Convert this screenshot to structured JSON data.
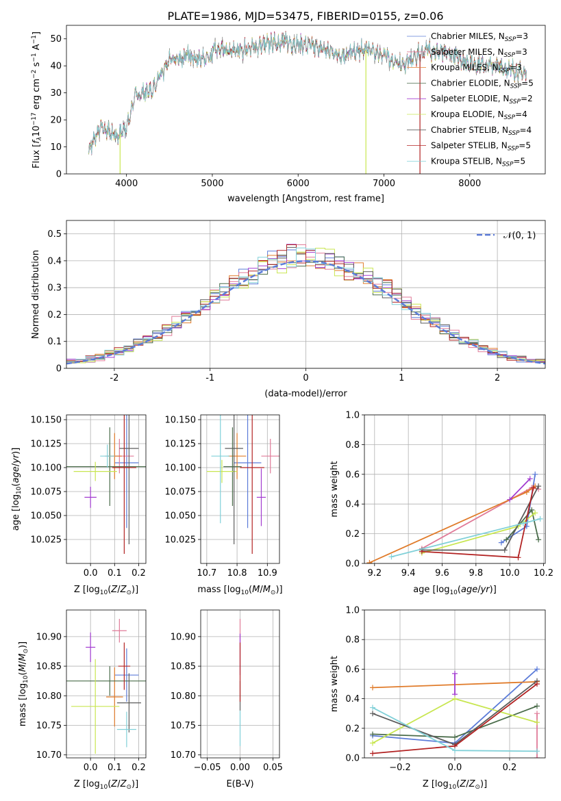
{
  "title": "PLATE=1986, MJD=53475, FIBERID=0155, z=0.06",
  "colors": [
    "#5b7bd8",
    "#e07a98",
    "#e07b2a",
    "#4a6c4a",
    "#a23bd0",
    "#c8e650",
    "#5b5b5b",
    "#b22222",
    "#80d0d8"
  ],
  "legend_spectrum": [
    {
      "label": "Chabrier MILES, N",
      "sub": "SSP",
      "tail": "=3"
    },
    {
      "label": "Salpeter MILES, N",
      "sub": "SSP",
      "tail": "=3"
    },
    {
      "label": "Kroupa MILES, N",
      "sub": "SSP",
      "tail": "=3"
    },
    {
      "label": "Chabrier ELODIE, N",
      "sub": "SSP",
      "tail": "=5"
    },
    {
      "label": "Salpeter ELODIE, N",
      "sub": "SSP",
      "tail": "=2"
    },
    {
      "label": "Kroupa ELODIE, N",
      "sub": "SSP",
      "tail": "=4"
    },
    {
      "label": "Chabrier STELIB, N",
      "sub": "SSP",
      "tail": "=4"
    },
    {
      "label": "Salpeter STELIB, N",
      "sub": "SSP",
      "tail": "=5"
    },
    {
      "label": "Kroupa STELIB, N",
      "sub": "SSP",
      "tail": "=5"
    }
  ],
  "legend_hist": "𝒩(0, 1)",
  "chart_data": [
    {
      "type": "line",
      "name": "spectrum",
      "xlabel": "wavelength [Angstrom, rest frame]",
      "ylabel_main": "Flux [",
      "ylabel_tail": "10",
      "ylabel_exp": "−17",
      "ylabel_unit": " erg cm",
      "ylabel_exp2": "−2",
      "ylabel_s": " s",
      "ylabel_exp3": "−1",
      "ylabel_A": " A",
      "ylabel_exp4": "−1",
      "ylabel_end": "]",
      "xlim": [
        3300,
        8880
      ],
      "ylim": [
        0,
        55
      ],
      "xticks": [
        4000,
        5000,
        6000,
        7000,
        8000
      ],
      "yticks": [
        0,
        10,
        20,
        30,
        40,
        50
      ],
      "x_anchor": [
        3560,
        3700,
        3900,
        4000,
        4100,
        4300,
        4500,
        4800,
        5000,
        5200,
        5500,
        5800,
        6000,
        6200,
        6500,
        6800,
        7000,
        7200,
        7500,
        7800,
        8000,
        8300,
        8660
      ],
      "y_anchor": [
        9,
        17,
        14,
        17,
        29,
        31,
        42,
        44,
        46,
        45,
        47,
        49,
        48,
        47,
        44,
        46,
        44,
        40,
        46,
        44,
        41,
        40,
        37
      ],
      "dropouts": [
        {
          "x": 3925,
          "color_index": 5
        },
        {
          "x": 6790,
          "color_index": 5
        },
        {
          "x": 7420,
          "color_index": 7
        }
      ]
    },
    {
      "type": "bar",
      "name": "residual-histogram",
      "xlabel": "(data-model)/error",
      "ylabel": "Normed distribution",
      "xlim": [
        -2.5,
        2.5
      ],
      "ylim": [
        0,
        0.55
      ],
      "xticks": [
        -2,
        -1,
        0,
        1,
        2
      ],
      "yticks": [
        0.0,
        0.1,
        0.2,
        0.3,
        0.4,
        0.5
      ],
      "bin_width": 0.1,
      "normal_curve": {
        "mu": 0,
        "sigma": 1,
        "color": "#5b7bd8"
      }
    },
    {
      "type": "scatter",
      "name": "age-vs-Z",
      "xlabel": "Z [log",
      "ylabel": "age  [log",
      "xlim": [
        -0.1,
        0.23
      ],
      "ylim": [
        10.0,
        10.155
      ],
      "xticks": [
        0.0,
        0.1,
        0.2
      ],
      "xticklabels": [
        "0.0",
        "0.1",
        "0.2"
      ],
      "yticks": [
        10.025,
        10.05,
        10.075,
        10.1,
        10.125,
        10.15
      ],
      "yticklabels": [
        "10.025",
        "10.050",
        "10.075",
        "10.100",
        "10.125",
        "10.150"
      ],
      "points": [
        {
          "x": 0.15,
          "y": 10.105,
          "xerr": 0.05,
          "yerr": 0.068,
          "c": 0
        },
        {
          "x": 0.12,
          "y": 10.112,
          "xerr": 0.06,
          "yerr": 0.018,
          "c": 1
        },
        {
          "x": 0.1,
          "y": 10.112,
          "xerr": 0.03,
          "yerr": 0.024,
          "c": 2
        },
        {
          "x": 0.08,
          "y": 10.101,
          "xerr": 0.18,
          "yerr": 0.041,
          "c": 3
        },
        {
          "x": 0.0,
          "y": 10.069,
          "xerr": 0.025,
          "yerr": 0.011,
          "c": 4
        },
        {
          "x": 0.02,
          "y": 10.096,
          "xerr": 0.09,
          "yerr": 0.01,
          "c": 5
        },
        {
          "x": 0.16,
          "y": 10.12,
          "xerr": 0.04,
          "yerr": 0.1,
          "c": 6
        },
        {
          "x": 0.14,
          "y": 10.1,
          "xerr": 0.05,
          "yerr": 0.09,
          "c": 7
        },
        {
          "x": 0.07,
          "y": 10.112,
          "xerr": 0.03,
          "yerr": 0.012,
          "c": 8
        }
      ]
    },
    {
      "type": "scatter",
      "name": "age-vs-mass",
      "xlabel": "mass [log",
      "xlim": [
        10.68,
        10.94
      ],
      "ylim": [
        10.0,
        10.155
      ],
      "xticks": [
        10.7,
        10.8,
        10.9
      ],
      "xticklabels": [
        "10.7",
        "10.8",
        "10.9"
      ],
      "yticks": [
        10.025,
        10.05,
        10.075,
        10.1,
        10.125,
        10.15
      ],
      "yticklabels": [
        "10.025",
        "10.050",
        "10.075",
        "10.100",
        "10.125",
        "10.150"
      ],
      "points": [
        {
          "x": 10.835,
          "y": 10.105,
          "xerr": 0.045,
          "yerr": 0.068,
          "c": 0
        },
        {
          "x": 10.91,
          "y": 10.112,
          "xerr": 0.03,
          "yerr": 0.018,
          "c": 1
        },
        {
          "x": 10.8,
          "y": 10.112,
          "xerr": 0.03,
          "yerr": 0.024,
          "c": 2
        },
        {
          "x": 10.785,
          "y": 10.101,
          "xerr": 0.03,
          "yerr": 0.041,
          "c": 3
        },
        {
          "x": 10.88,
          "y": 10.069,
          "xerr": 0.015,
          "yerr": 0.03,
          "c": 4
        },
        {
          "x": 10.75,
          "y": 10.096,
          "xerr": 0.05,
          "yerr": 0.012,
          "c": 5
        },
        {
          "x": 10.79,
          "y": 10.12,
          "xerr": 0.03,
          "yerr": 0.1,
          "c": 6
        },
        {
          "x": 10.85,
          "y": 10.1,
          "xerr": 0.04,
          "yerr": 0.09,
          "c": 7
        },
        {
          "x": 10.745,
          "y": 10.112,
          "xerr": 0.03,
          "yerr": 0.07,
          "c": 8
        }
      ]
    },
    {
      "type": "line",
      "name": "weight-vs-age",
      "xlabel": "age  [log",
      "ylabel": "mass weight",
      "xlim": [
        9.14,
        10.21
      ],
      "ylim": [
        0.0,
        1.0
      ],
      "xticks": [
        9.2,
        9.4,
        9.6,
        9.8,
        10.0,
        10.2
      ],
      "xticklabels": [
        "9.2",
        "9.4",
        "9.6",
        "9.8",
        "10.0",
        "10.2"
      ],
      "yticks": [
        0.0,
        0.2,
        0.4,
        0.6,
        0.8,
        1.0
      ],
      "yticklabels": [
        "0.0",
        "0.2",
        "0.4",
        "0.6",
        "0.8",
        "1.0"
      ],
      "series": [
        {
          "c": 0,
          "x": [
            9.95,
            10.1,
            10.15
          ],
          "y": [
            0.14,
            0.25,
            0.6
          ]
        },
        {
          "c": 1,
          "x": [
            9.48,
            10.13,
            10.17
          ],
          "y": [
            0.1,
            0.51,
            0.5
          ]
        },
        {
          "c": 2,
          "x": [
            9.17,
            10.1,
            10.15
          ],
          "y": [
            0.005,
            0.48,
            0.52
          ]
        },
        {
          "c": 3,
          "x": [
            9.98,
            10.13,
            10.17
          ],
          "y": [
            0.16,
            0.36,
            0.16
          ]
        },
        {
          "c": 4,
          "x": [
            10.0,
            10.12
          ],
          "y": [
            0.43,
            0.57
          ]
        },
        {
          "c": 5,
          "x": [
            9.48,
            10.05,
            10.15
          ],
          "y": [
            0.07,
            0.25,
            0.34
          ]
        },
        {
          "c": 6,
          "x": [
            9.48,
            9.97,
            10.17
          ],
          "y": [
            0.09,
            0.09,
            0.52
          ]
        },
        {
          "c": 7,
          "x": [
            9.48,
            10.05,
            10.14
          ],
          "y": [
            0.08,
            0.04,
            0.51
          ]
        },
        {
          "c": 8,
          "x": [
            9.3,
            10.08,
            10.18
          ],
          "y": [
            0.045,
            0.27,
            0.3
          ]
        }
      ]
    },
    {
      "type": "scatter",
      "name": "mass-vs-Z",
      "xlabel": "Z [log",
      "ylabel": "mass [log",
      "xlim": [
        -0.1,
        0.23
      ],
      "ylim": [
        10.695,
        10.945
      ],
      "xticks": [
        0.0,
        0.1,
        0.2
      ],
      "xticklabels": [
        "0.0",
        "0.1",
        "0.2"
      ],
      "yticks": [
        10.7,
        10.75,
        10.8,
        10.85,
        10.9
      ],
      "yticklabels": [
        "10.70",
        "10.75",
        "10.80",
        "10.85",
        "10.90"
      ],
      "points": [
        {
          "x": 0.15,
          "y": 10.835,
          "xerr": 0.05,
          "yerr": 0.045,
          "c": 0
        },
        {
          "x": 0.12,
          "y": 10.91,
          "xerr": 0.03,
          "yerr": 0.02,
          "c": 1
        },
        {
          "x": 0.1,
          "y": 10.798,
          "xerr": 0.035,
          "yerr": 0.05,
          "c": 2
        },
        {
          "x": 0.08,
          "y": 10.825,
          "xerr": 0.18,
          "yerr": 0.025,
          "c": 3
        },
        {
          "x": 0.0,
          "y": 10.882,
          "xerr": 0.02,
          "yerr": 0.025,
          "c": 4
        },
        {
          "x": 0.02,
          "y": 10.782,
          "xerr": 0.1,
          "yerr": 0.08,
          "c": 5
        },
        {
          "x": 0.16,
          "y": 10.788,
          "xerr": 0.05,
          "yerr": 0.05,
          "c": 6
        },
        {
          "x": 0.14,
          "y": 10.85,
          "xerr": 0.025,
          "yerr": 0.04,
          "c": 7
        },
        {
          "x": 0.15,
          "y": 10.743,
          "xerr": 0.04,
          "yerr": 0.03,
          "c": 8
        }
      ]
    },
    {
      "type": "scatter",
      "name": "mass-vs-EBV",
      "xlabel": "E(B-V)",
      "xlim": [
        -0.06,
        0.06
      ],
      "ylim": [
        10.695,
        10.945
      ],
      "xticks": [
        -0.05,
        0.0,
        0.05
      ],
      "xticklabels": [
        "−0.05",
        "0.00",
        "0.05"
      ],
      "yticks": [
        10.7,
        10.75,
        10.8,
        10.85,
        10.9
      ],
      "yticklabels": [
        "10.70",
        "10.75",
        "10.80",
        "10.85",
        "10.90"
      ],
      "points": [
        {
          "x": 0.0,
          "y": 10.91,
          "xerr": 0,
          "yerr": 0.02,
          "c": 1
        },
        {
          "x": 0.0,
          "y": 10.87,
          "xerr": 0,
          "yerr": 0.035,
          "c": 4
        },
        {
          "x": 0.0,
          "y": 10.8,
          "xerr": 0,
          "yerr": 0.025,
          "c": 6
        },
        {
          "x": 0.0,
          "y": 10.84,
          "xerr": 0,
          "yerr": 0.05,
          "c": 7
        },
        {
          "x": 0.0,
          "y": 10.745,
          "xerr": 0,
          "yerr": 0.03,
          "c": 8
        }
      ]
    },
    {
      "type": "line",
      "name": "weight-vs-Z",
      "xlabel": "Z [log",
      "ylabel": "mass weight",
      "xlim": [
        -0.33,
        0.33
      ],
      "ylim": [
        0.0,
        1.0
      ],
      "xticks": [
        -0.2,
        0.0,
        0.2
      ],
      "xticklabels": [
        "−0.2",
        "0.0",
        "0.2"
      ],
      "yticks": [
        0.0,
        0.2,
        0.4,
        0.6,
        0.8,
        1.0
      ],
      "yticklabels": [
        "0.0",
        "0.2",
        "0.4",
        "0.6",
        "0.8",
        "1.0"
      ],
      "series": [
        {
          "c": 0,
          "x": [
            -0.3,
            0.0,
            0.3
          ],
          "y": [
            0.15,
            0.1,
            0.6
          ]
        },
        {
          "c": 1,
          "x": [
            0.3,
            0.3
          ],
          "y": [
            0.0,
            0.3
          ]
        },
        {
          "c": 2,
          "x": [
            -0.3,
            0.3
          ],
          "y": [
            0.475,
            0.515
          ]
        },
        {
          "c": 3,
          "x": [
            -0.3,
            0.0,
            0.3
          ],
          "y": [
            0.16,
            0.14,
            0.35
          ]
        },
        {
          "c": 4,
          "x": [
            0.0,
            0.0
          ],
          "y": [
            0.43,
            0.57
          ]
        },
        {
          "c": 5,
          "x": [
            -0.3,
            0.0,
            0.3
          ],
          "y": [
            0.1,
            0.4,
            0.24
          ]
        },
        {
          "c": 6,
          "x": [
            -0.3,
            0.0,
            0.3
          ],
          "y": [
            0.3,
            0.09,
            0.52
          ]
        },
        {
          "c": 7,
          "x": [
            -0.3,
            0.0,
            0.3
          ],
          "y": [
            0.03,
            0.08,
            0.5
          ]
        },
        {
          "c": 8,
          "x": [
            -0.3,
            0.0,
            0.3
          ],
          "y": [
            0.34,
            0.05,
            0.045
          ]
        }
      ]
    }
  ]
}
